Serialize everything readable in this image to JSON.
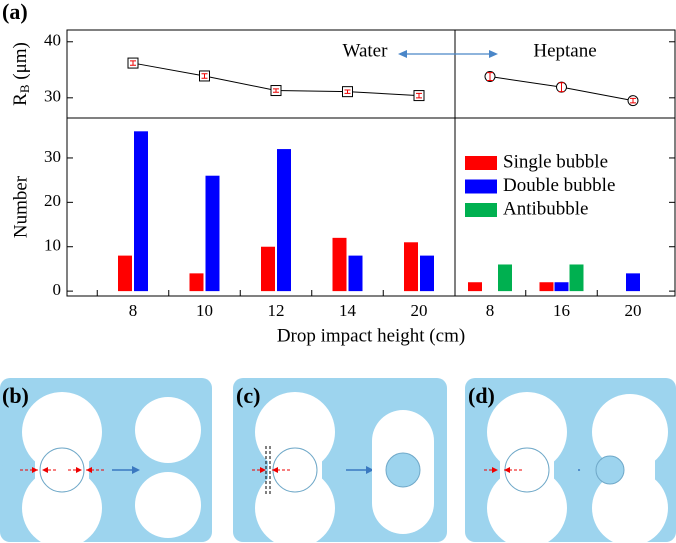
{
  "figure_label": "(a)",
  "chart_data": [
    {
      "type": "line",
      "y_label": {
        "main": "R",
        "sub": "B",
        "unit": " (μm)"
      },
      "categories": [
        "8",
        "10",
        "12",
        "14",
        "20",
        "8",
        "16",
        "20"
      ],
      "series": [
        {
          "name": "Water",
          "color": "#000000",
          "marker": "square",
          "values": [
            36.2,
            33.9,
            31.3,
            31.1,
            30.4,
            null,
            null,
            null
          ],
          "errors": [
            0.4,
            0.4,
            0.3,
            0.3,
            0.4,
            null,
            null,
            null
          ]
        },
        {
          "name": "Heptane",
          "color": "#000000",
          "marker": "circle",
          "values": [
            null,
            null,
            null,
            null,
            null,
            33.8,
            31.9,
            29.5
          ],
          "errors": [
            null,
            null,
            null,
            null,
            null,
            0.7,
            0.8,
            0.4
          ]
        }
      ],
      "ylim": [
        26.4,
        42.1
      ],
      "yticks": [
        30,
        40
      ]
    },
    {
      "type": "bar",
      "x_label": "Drop impact height (cm)",
      "y_label": "Number",
      "categories": [
        "8",
        "10",
        "12",
        "14",
        "20",
        "8",
        "16",
        "20"
      ],
      "series": [
        {
          "name": "Single bubble",
          "color": "#ff0000",
          "values": [
            8,
            4,
            10,
            12,
            11,
            2,
            2,
            null
          ]
        },
        {
          "name": "Double bubble",
          "color": "#0000ff",
          "values": [
            36,
            26,
            32,
            8,
            8,
            null,
            2,
            4
          ]
        },
        {
          "name": "Antibubble",
          "color": "#00b050",
          "values": [
            null,
            null,
            null,
            null,
            null,
            6,
            6,
            null
          ]
        }
      ],
      "ylim": [
        -1.1,
        39
      ],
      "yticks": [
        0,
        10,
        20,
        30
      ],
      "legend": "right"
    }
  ],
  "panels": [
    {
      "label": "(b)"
    },
    {
      "label": "(c)"
    },
    {
      "label": "(d)"
    }
  ]
}
